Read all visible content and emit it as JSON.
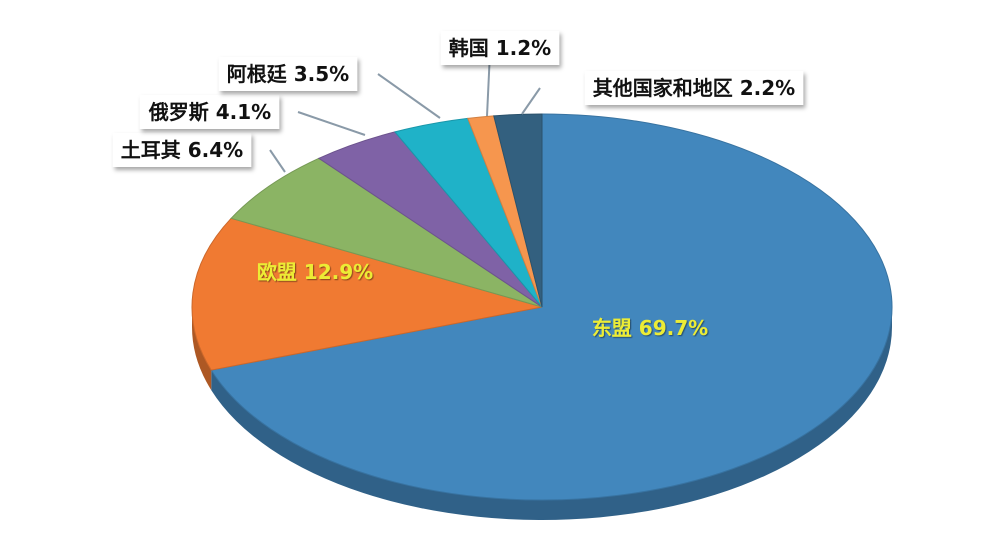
{
  "chart_data": {
    "type": "pie",
    "title": "",
    "categories": [
      "东盟",
      "欧盟",
      "土耳其",
      "俄罗斯",
      "阿根廷",
      "韩国",
      "其他国家和地区"
    ],
    "values": [
      69.7,
      12.9,
      6.4,
      4.1,
      3.5,
      1.2,
      2.2
    ],
    "labels": [
      "东盟 69.7%",
      "欧盟 12.9%",
      "土耳其 6.4%",
      "俄罗斯 4.1%",
      "阿根廷 3.5%",
      "韩国 1.2%",
      "其他国家和地区 2.2%"
    ],
    "colors": [
      "#4287bd",
      "#f07a32",
      "#8bb464",
      "#7f62a6",
      "#1fb2c8",
      "#f6964e",
      "#33607f"
    ],
    "label_colors": [
      "#ecec34",
      "#ecec34",
      "#111111",
      "#111111",
      "#111111",
      "#111111",
      "#111111"
    ],
    "legend": "none"
  }
}
